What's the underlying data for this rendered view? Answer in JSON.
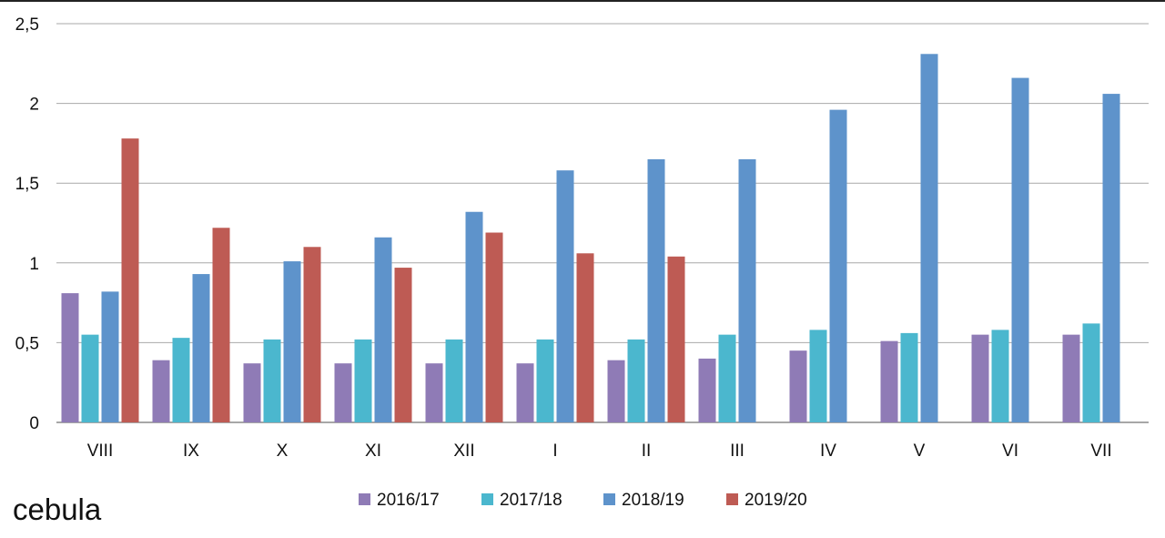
{
  "chart_data": {
    "type": "bar",
    "title": "cebula",
    "xlabel": "",
    "ylabel": "",
    "ylim": [
      0,
      2.5
    ],
    "y_ticks": [
      "0",
      "0,5",
      "1",
      "1,5",
      "2",
      "2,5"
    ],
    "y_tick_values": [
      0,
      0.5,
      1,
      1.5,
      2,
      2.5
    ],
    "grid": "horizontal",
    "legend_position": "bottom-center",
    "categories": [
      "VIII",
      "IX",
      "X",
      "XI",
      "XII",
      "I",
      "II",
      "III",
      "IV",
      "V",
      "VI",
      "VII"
    ],
    "series": [
      {
        "name": "2016/17",
        "color": "#8F7BB6",
        "values": [
          0.81,
          0.39,
          0.37,
          0.37,
          0.37,
          0.37,
          0.39,
          0.4,
          0.45,
          0.51,
          0.55,
          0.55
        ]
      },
      {
        "name": "2017/18",
        "color": "#4BB7CE",
        "values": [
          0.55,
          0.53,
          0.52,
          0.52,
          0.52,
          0.52,
          0.52,
          0.55,
          0.58,
          0.56,
          0.58,
          0.62
        ]
      },
      {
        "name": "2018/19",
        "color": "#5E93CB",
        "values": [
          0.82,
          0.93,
          1.01,
          1.16,
          1.32,
          1.58,
          1.65,
          1.65,
          1.96,
          2.31,
          2.16,
          2.06
        ]
      },
      {
        "name": "2019/20",
        "color": "#BE5B54",
        "values": [
          1.78,
          1.22,
          1.1,
          0.97,
          1.19,
          1.06,
          1.04,
          null,
          null,
          null,
          null,
          null
        ]
      }
    ]
  }
}
